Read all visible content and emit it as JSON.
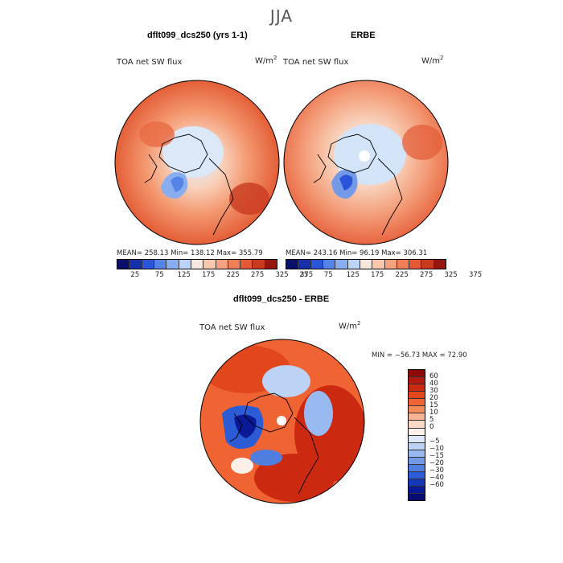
{
  "title": "JJA",
  "panels": [
    {
      "title": "dflt099_dcs250 (yrs 1-1)",
      "variable": "TOA net SW flux",
      "units": "W/m",
      "units_sup": "2",
      "stats": "MEAN= 258.13   Min= 138.12   Max= 355.79"
    },
    {
      "title": "ERBE",
      "variable": "TOA net SW flux",
      "units": "W/m",
      "units_sup": "2",
      "stats": "MEAN= 243.16   Min=  96.19   Max= 306.31"
    },
    {
      "title": "dflt099_dcs250 - ERBE",
      "variable": "TOA net SW flux",
      "units": "W/m",
      "units_sup": "2",
      "stats": "MIN = −56.73 MAX =  72.90"
    }
  ],
  "abs_colorbar": {
    "colors": [
      "#08106a",
      "#1530a8",
      "#2a55d8",
      "#5584e8",
      "#88aef0",
      "#bcd4f7",
      "#f6e6dc",
      "#f9c7ab",
      "#f6a27f",
      "#f07e57",
      "#e35a34",
      "#c93a1f",
      "#971610"
    ],
    "labels": [
      "25",
      "75",
      "125",
      "175",
      "225",
      "275",
      "325",
      "375"
    ]
  },
  "diff_colorbar": {
    "colors": [
      "#8b0a06",
      "#b01a0e",
      "#cc2a10",
      "#e2461c",
      "#ef6432",
      "#f48a5a",
      "#f8b492",
      "#fbd9c4",
      "#fdf0e8",
      "#dde9f8",
      "#bcd3f5",
      "#98baf0",
      "#7399e8",
      "#4f7de0",
      "#2b5cd5",
      "#1637b8",
      "#0a1a96",
      "#050b70"
    ],
    "labels": [
      "60",
      "40",
      "30",
      "20",
      "15",
      "10",
      "5",
      "0",
      "−5",
      "−10",
      "−15",
      "−20",
      "−30",
      "−40",
      "−60"
    ]
  }
}
